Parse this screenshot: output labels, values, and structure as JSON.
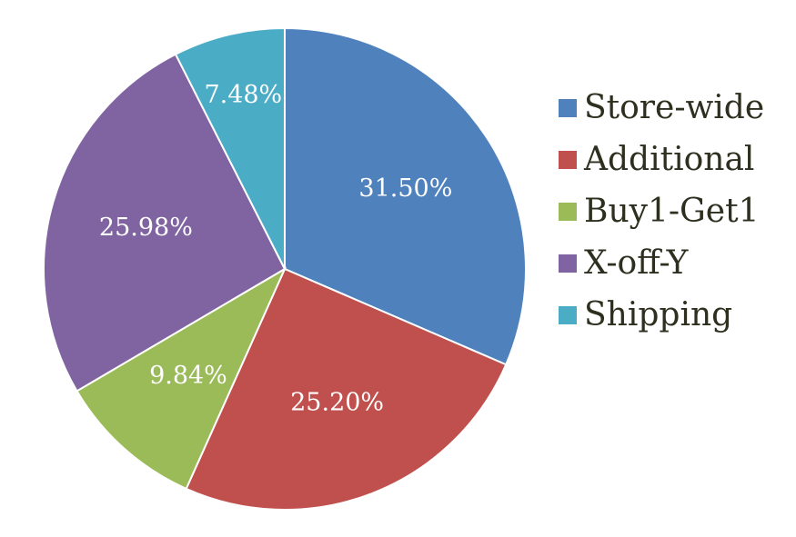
{
  "chart_data": {
    "type": "pie",
    "categories": [
      "Store-wide",
      "Additional",
      "Buy1-Get1",
      "X-off-Y",
      "Shipping"
    ],
    "values": [
      31.5,
      25.2,
      9.84,
      25.98,
      7.48
    ],
    "labels": [
      "31.50%",
      "25.20%",
      "9.84%",
      "25.98%",
      "7.48%"
    ],
    "colors": [
      "#4f81bd",
      "#c0504d",
      "#9bbb59",
      "#8064a2",
      "#4bacc6"
    ],
    "title": "",
    "legend_position": "right",
    "start_angle": "top",
    "direction": "clockwise"
  }
}
